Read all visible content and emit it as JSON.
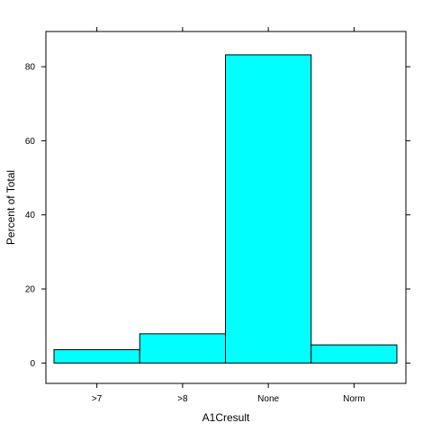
{
  "chart_data": {
    "type": "bar",
    "categories": [
      ">7",
      ">8",
      "None",
      "Norm"
    ],
    "values": [
      3.6,
      7.9,
      83.2,
      4.9
    ],
    "xlabel": "A1Cresult",
    "ylabel": "Percent of Total",
    "ylim": [
      -5.5,
      89.5
    ],
    "yticks": [
      0,
      20,
      40,
      60,
      80
    ],
    "bar_color": "#00ffff",
    "border_color": "#000000",
    "grid": false
  }
}
